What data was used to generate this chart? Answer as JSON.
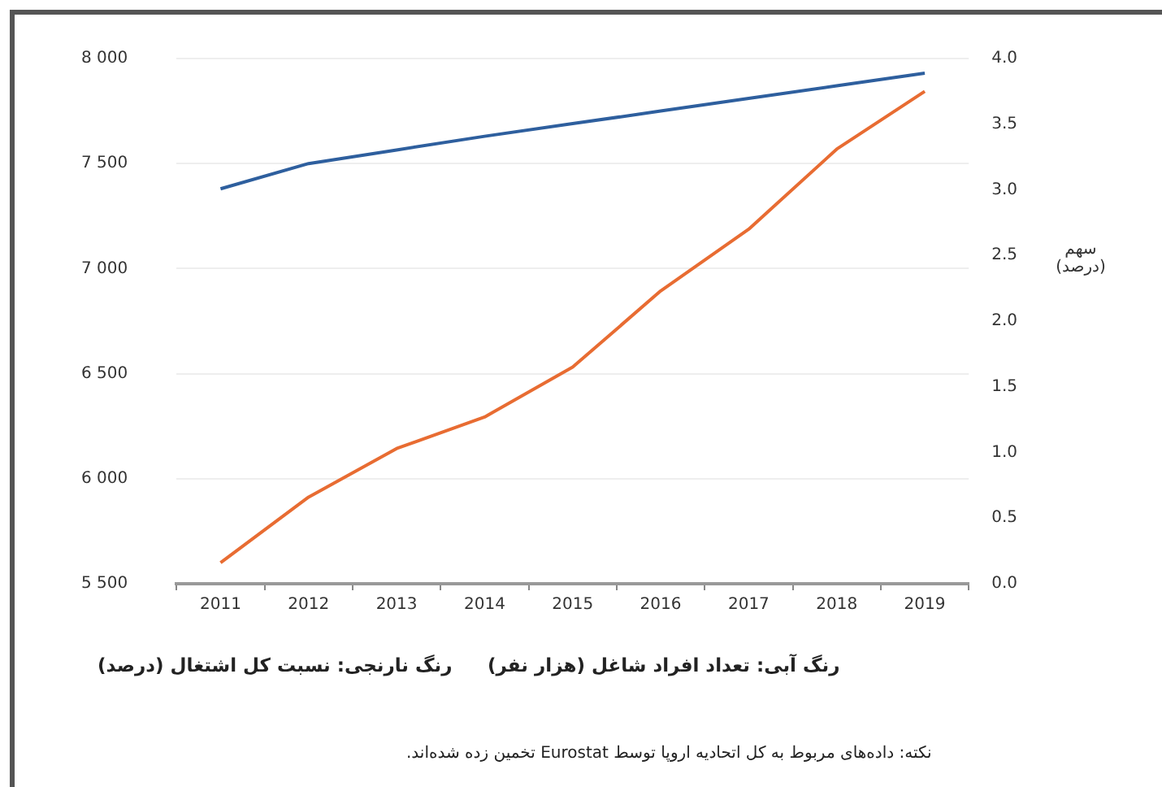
{
  "chart_data": {
    "type": "line",
    "categories": [
      "2011",
      "2012",
      "2013",
      "2014",
      "2015",
      "2016",
      "2017",
      "2018",
      "2019"
    ],
    "series": [
      {
        "color": "#2e5f9e",
        "values": [
          7380,
          7500,
          7565,
          7630,
          7690,
          7750,
          7810,
          7870,
          7930
        ]
      },
      {
        "color": "#e86c32",
        "axis": "y2",
        "values": [
          0.16,
          0.66,
          1.03,
          1.27,
          1.65,
          2.23,
          2.7,
          3.31,
          3.75
        ]
      }
    ],
    "ylim": [
      5500,
      8000
    ],
    "yticks": [
      {
        "value": 5500,
        "label": "5 500"
      },
      {
        "value": 6000,
        "label": "6 000"
      },
      {
        "value": 6500,
        "label": "6 500"
      },
      {
        "value": 7000,
        "label": "7 000"
      },
      {
        "value": 7500,
        "label": "7 500"
      },
      {
        "value": 8000,
        "label": "8 000"
      }
    ],
    "y2lim": [
      0,
      4
    ],
    "y2ticks": [
      {
        "value": 0,
        "label": "0.0"
      },
      {
        "value": 0.5,
        "label": "0.5"
      },
      {
        "value": 1,
        "label": "1.0"
      },
      {
        "value": 1.5,
        "label": "1.5"
      },
      {
        "value": 2,
        "label": "2.0"
      },
      {
        "value": 2.5,
        "label": "2.5"
      },
      {
        "value": 3,
        "label": "3.0"
      },
      {
        "value": 3.5,
        "label": "3.5"
      },
      {
        "value": 4,
        "label": "4.0"
      }
    ],
    "y2label": "سهم\n(درصد)",
    "grid": "y",
    "legend": false,
    "marker": "none",
    "line_style": "solid",
    "annotations": [
      "رنگ آبی: تعداد افراد شاغل (هزار نفر)",
      "رنگ نارنجی: نسبت کل اشتغال (درصد)",
      "نکته: داده‌های مربوط به کل اتحادیه اروپا توسط Eurostat تخمین زده شده‌اند."
    ]
  }
}
